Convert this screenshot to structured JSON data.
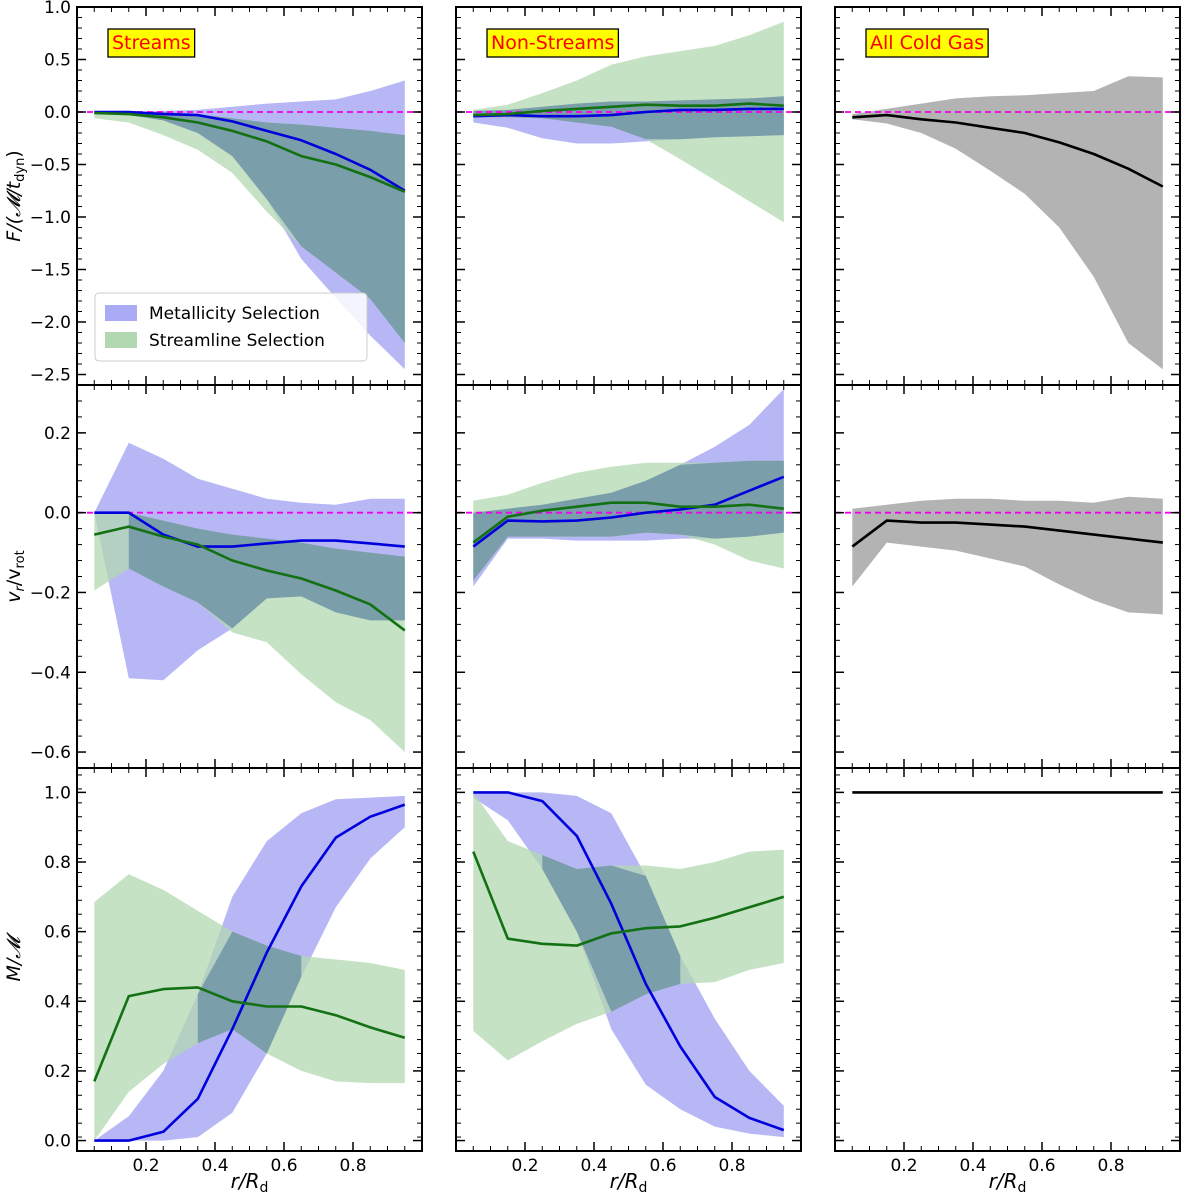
{
  "colors": {
    "metallicity": "#0000dd",
    "metallicity_band": "#aaaaf5",
    "streamline": "#137113",
    "streamline_band": "#b2d8b2",
    "overlap_tint": "#7a9eaa",
    "all_gas": "#000000",
    "all_gas_band": "#b3b3b3",
    "reference_line": "#ee00ee",
    "panel_label_bg": "#ffff00",
    "panel_label_text": "#ff0000"
  },
  "columns": [
    {
      "label": "Streams"
    },
    {
      "label": "Non-Streams"
    },
    {
      "label": "All Cold Gas"
    }
  ],
  "legend": {
    "entries": [
      "Metallicity Selection",
      "Streamline Selection"
    ],
    "placement": "lower-left of top-left panel"
  },
  "chart_data": {
    "type": "area",
    "x": [
      0.05,
      0.15,
      0.25,
      0.35,
      0.45,
      0.55,
      0.65,
      0.75,
      0.85,
      0.95
    ],
    "xlim": [
      0.0,
      1.0
    ],
    "xticks": [
      "0.2",
      "0.4",
      "0.6",
      "0.8"
    ],
    "xlabel": "r/R",
    "xlabel_sub": "d",
    "rows": [
      {
        "id": "flux",
        "ylabel": "F/(𝓜/t",
        "ylabel_sub": "dyn",
        "ylabel_tail": ")",
        "ylim": [
          -2.6,
          1.0
        ],
        "yticks": [
          "1.0",
          "0.5",
          "0.0",
          "−0.5",
          "−1.0",
          "−1.5",
          "−2.0",
          "−2.5"
        ],
        "reference_y": 0.0
      },
      {
        "id": "velocity",
        "ylabel": "v",
        "ylabel_sub": "r",
        "ylabel_mid": "/v",
        "ylabel_sub2": "rot",
        "ylim": [
          -0.64,
          0.32
        ],
        "yticks": [
          "0.2",
          "0.0",
          "−0.2",
          "−0.4",
          "−0.6"
        ],
        "reference_y": 0.0
      },
      {
        "id": "mass_fraction",
        "ylabel": "M/𝓜",
        "ylim": [
          -0.03,
          1.07
        ],
        "yticks": [
          "1.0",
          "0.8",
          "0.6",
          "0.4",
          "0.2",
          "0.0"
        ]
      }
    ],
    "panels": [
      {
        "row": "flux",
        "col": 0,
        "reference_line": true,
        "series": [
          {
            "key": "metallicity",
            "median": [
              0,
              0,
              -0.02,
              -0.03,
              -0.09,
              -0.18,
              -0.27,
              -0.4,
              -0.55,
              -0.75
            ],
            "lo": [
              -0.02,
              -0.03,
              -0.08,
              -0.2,
              -0.42,
              -0.83,
              -1.4,
              -1.77,
              -2.13,
              -2.45
            ],
            "hi": [
              0,
              0,
              0.01,
              0.02,
              0.05,
              0.08,
              0.1,
              0.12,
              0.2,
              0.3
            ]
          },
          {
            "key": "streamline",
            "median": [
              -0.01,
              -0.02,
              -0.05,
              -0.1,
              -0.18,
              -0.28,
              -0.42,
              -0.5,
              -0.62,
              -0.76
            ],
            "lo": [
              -0.06,
              -0.1,
              -0.22,
              -0.36,
              -0.58,
              -0.95,
              -1.28,
              -1.53,
              -1.78,
              -2.2
            ],
            "hi": [
              0,
              0,
              0,
              -0.02,
              -0.06,
              -0.1,
              -0.12,
              -0.15,
              -0.18,
              -0.22
            ]
          }
        ]
      },
      {
        "row": "flux",
        "col": 1,
        "reference_line": true,
        "series": [
          {
            "key": "metallicity",
            "median": [
              -0.04,
              -0.03,
              -0.04,
              -0.04,
              -0.03,
              0.0,
              0.02,
              0.02,
              0.03,
              0.03
            ],
            "lo": [
              -0.1,
              -0.15,
              -0.25,
              -0.3,
              -0.3,
              -0.28,
              -0.26,
              -0.24,
              -0.23,
              -0.22
            ],
            "hi": [
              0.01,
              0.02,
              0.05,
              0.08,
              0.1,
              0.1,
              0.11,
              0.12,
              0.13,
              0.15
            ]
          },
          {
            "key": "streamline",
            "median": [
              -0.03,
              -0.02,
              0.01,
              0.03,
              0.05,
              0.07,
              0.06,
              0.06,
              0.08,
              0.06
            ],
            "lo": [
              -0.05,
              -0.05,
              -0.06,
              -0.1,
              -0.14,
              -0.26,
              -0.45,
              -0.65,
              -0.85,
              -1.05
            ],
            "hi": [
              0.02,
              0.07,
              0.18,
              0.3,
              0.45,
              0.53,
              0.58,
              0.63,
              0.73,
              0.86
            ]
          }
        ]
      },
      {
        "row": "flux",
        "col": 2,
        "reference_line": true,
        "series": [
          {
            "key": "all_gas",
            "median": [
              -0.05,
              -0.03,
              -0.07,
              -0.1,
              -0.15,
              -0.2,
              -0.29,
              -0.4,
              -0.54,
              -0.71
            ],
            "lo": [
              -0.07,
              -0.11,
              -0.2,
              -0.35,
              -0.56,
              -0.78,
              -1.1,
              -1.57,
              -2.2,
              -2.45
            ],
            "hi": [
              -0.02,
              0.03,
              0.08,
              0.13,
              0.15,
              0.16,
              0.18,
              0.2,
              0.34,
              0.33
            ]
          }
        ]
      },
      {
        "row": "velocity",
        "col": 0,
        "reference_line": true,
        "series": [
          {
            "key": "metallicity",
            "median": [
              0.0,
              0.0,
              -0.055,
              -0.085,
              -0.085,
              -0.077,
              -0.07,
              -0.07,
              -0.077,
              -0.085
            ],
            "lo": [
              0.0,
              -0.415,
              -0.42,
              -0.345,
              -0.29,
              -0.215,
              -0.21,
              -0.25,
              -0.27,
              -0.27
            ],
            "hi": [
              0.0,
              0.175,
              0.135,
              0.085,
              0.06,
              0.035,
              0.025,
              0.02,
              0.035,
              0.035
            ]
          },
          {
            "key": "streamline",
            "median": [
              -0.055,
              -0.035,
              -0.06,
              -0.08,
              -0.12,
              -0.145,
              -0.165,
              -0.195,
              -0.23,
              -0.295
            ],
            "lo": [
              -0.195,
              -0.14,
              -0.185,
              -0.225,
              -0.3,
              -0.325,
              -0.405,
              -0.475,
              -0.52,
              -0.6
            ],
            "hi": [
              0.0,
              0.0,
              -0.02,
              -0.04,
              -0.055,
              -0.065,
              -0.075,
              -0.09,
              -0.1,
              -0.11
            ]
          }
        ]
      },
      {
        "row": "velocity",
        "col": 1,
        "reference_line": true,
        "series": [
          {
            "key": "metallicity",
            "median": [
              -0.085,
              -0.02,
              -0.022,
              -0.02,
              -0.012,
              0.0,
              0.008,
              0.02,
              0.055,
              0.09
            ],
            "lo": [
              -0.185,
              -0.065,
              -0.065,
              -0.07,
              -0.07,
              -0.07,
              -0.065,
              -0.065,
              -0.06,
              -0.05
            ],
            "hi": [
              0.0,
              0.01,
              0.02,
              0.035,
              0.05,
              0.08,
              0.12,
              0.165,
              0.22,
              0.31
            ]
          },
          {
            "key": "streamline",
            "median": [
              -0.075,
              -0.01,
              0.005,
              0.015,
              0.025,
              0.025,
              0.015,
              0.015,
              0.02,
              0.01
            ],
            "lo": [
              -0.17,
              -0.06,
              -0.06,
              -0.06,
              -0.06,
              -0.05,
              -0.055,
              -0.08,
              -0.12,
              -0.14
            ],
            "hi": [
              0.03,
              0.045,
              0.075,
              0.1,
              0.115,
              0.125,
              0.125,
              0.125,
              0.13,
              0.13
            ]
          }
        ]
      },
      {
        "row": "velocity",
        "col": 2,
        "reference_line": true,
        "series": [
          {
            "key": "all_gas",
            "median": [
              -0.085,
              -0.02,
              -0.025,
              -0.025,
              -0.03,
              -0.035,
              -0.045,
              -0.055,
              -0.065,
              -0.075
            ],
            "lo": [
              -0.185,
              -0.075,
              -0.085,
              -0.095,
              -0.115,
              -0.135,
              -0.18,
              -0.22,
              -0.25,
              -0.255
            ],
            "hi": [
              0.01,
              0.02,
              0.03,
              0.035,
              0.035,
              0.03,
              0.03,
              0.025,
              0.04,
              0.035
            ]
          }
        ]
      },
      {
        "row": "mass_fraction",
        "col": 0,
        "reference_line": false,
        "series": [
          {
            "key": "metallicity",
            "median": [
              0.0,
              0.0,
              0.025,
              0.12,
              0.32,
              0.54,
              0.73,
              0.87,
              0.93,
              0.965
            ],
            "lo": [
              0.0,
              0.0,
              0.0,
              0.01,
              0.08,
              0.25,
              0.47,
              0.67,
              0.81,
              0.9
            ],
            "hi": [
              0.0,
              0.07,
              0.2,
              0.42,
              0.7,
              0.86,
              0.94,
              0.98,
              0.985,
              0.99
            ]
          },
          {
            "key": "streamline",
            "median": [
              0.17,
              0.415,
              0.435,
              0.44,
              0.4,
              0.385,
              0.385,
              0.36,
              0.325,
              0.295
            ],
            "lo": [
              0.0,
              0.14,
              0.22,
              0.28,
              0.32,
              0.25,
              0.2,
              0.17,
              0.165,
              0.165
            ],
            "hi": [
              0.685,
              0.765,
              0.72,
              0.66,
              0.6,
              0.56,
              0.53,
              0.52,
              0.51,
              0.49
            ]
          }
        ]
      },
      {
        "row": "mass_fraction",
        "col": 1,
        "reference_line": false,
        "series": [
          {
            "key": "metallicity",
            "median": [
              1.0,
              1.0,
              0.975,
              0.875,
              0.68,
              0.45,
              0.27,
              0.125,
              0.065,
              0.03
            ],
            "lo": [
              0.985,
              0.92,
              0.78,
              0.6,
              0.32,
              0.16,
              0.09,
              0.04,
              0.02,
              0.01
            ],
            "hi": [
              1.0,
              1.0,
              1.0,
              0.99,
              0.94,
              0.76,
              0.53,
              0.35,
              0.2,
              0.1
            ]
          },
          {
            "key": "streamline",
            "median": [
              0.83,
              0.58,
              0.565,
              0.56,
              0.595,
              0.61,
              0.615,
              0.64,
              0.67,
              0.7
            ],
            "lo": [
              0.315,
              0.23,
              0.285,
              0.335,
              0.37,
              0.42,
              0.45,
              0.455,
              0.49,
              0.51
            ],
            "hi": [
              1.0,
              0.86,
              0.82,
              0.78,
              0.79,
              0.79,
              0.78,
              0.8,
              0.83,
              0.835
            ]
          }
        ]
      },
      {
        "row": "mass_fraction",
        "col": 2,
        "reference_line": false,
        "series": [
          {
            "key": "all_gas",
            "median": [
              1,
              1,
              1,
              1,
              1,
              1,
              1,
              1,
              1,
              1
            ]
          }
        ]
      }
    ]
  }
}
